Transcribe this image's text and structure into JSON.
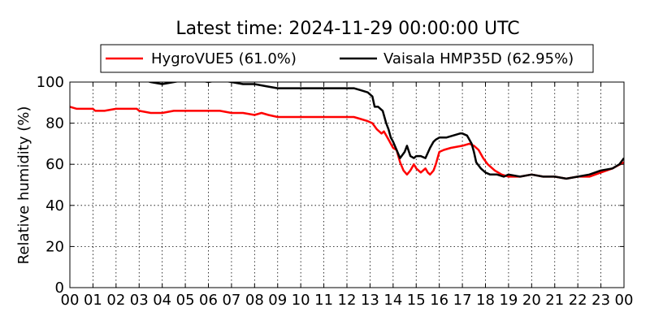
{
  "chart_data": {
    "type": "line",
    "title": "Latest time: 2024-11-29 00:00:00 UTC",
    "xlabel": "",
    "ylabel": "Relative humidity (%)",
    "xlim": [
      0,
      24
    ],
    "ylim": [
      0,
      100
    ],
    "x_ticks": [
      0,
      1,
      2,
      3,
      4,
      5,
      6,
      7,
      8,
      9,
      10,
      11,
      12,
      13,
      14,
      15,
      16,
      17,
      18,
      19,
      20,
      21,
      22,
      23,
      24
    ],
    "x_tick_labels": [
      "00",
      "01",
      "02",
      "03",
      "04",
      "05",
      "06",
      "07",
      "08",
      "09",
      "10",
      "11",
      "12",
      "13",
      "14",
      "15",
      "16",
      "17",
      "18",
      "19",
      "20",
      "21",
      "22",
      "23",
      "00"
    ],
    "y_ticks": [
      0,
      20,
      40,
      60,
      80,
      100
    ],
    "y_tick_labels": [
      "0",
      "20",
      "40",
      "60",
      "80",
      "100"
    ],
    "grid": true,
    "legend_position": "top-center",
    "series": [
      {
        "name": "HygroVUE5 (61.0%)",
        "color": "#ff0000",
        "x": [
          0,
          0.3,
          0.5,
          1.0,
          1.1,
          1.5,
          2.0,
          2.5,
          2.9,
          3.0,
          3.5,
          4.0,
          4.5,
          5.0,
          5.5,
          6.0,
          6.2,
          6.5,
          7.0,
          7.5,
          8.0,
          8.3,
          8.6,
          9.0,
          10.0,
          11.0,
          11.5,
          12.0,
          12.3,
          12.6,
          12.9,
          13.1,
          13.3,
          13.5,
          13.6,
          13.8,
          14.0,
          14.15,
          14.3,
          14.45,
          14.6,
          14.75,
          14.9,
          15.0,
          15.2,
          15.4,
          15.5,
          15.6,
          15.75,
          15.85,
          16.0,
          16.2,
          16.5,
          17.0,
          17.3,
          17.5,
          17.7,
          17.9,
          18.1,
          18.4,
          18.7,
          19.0,
          19.5,
          20.0,
          20.5,
          21.0,
          21.5,
          22.0,
          22.5,
          23.0,
          23.5,
          24.0
        ],
        "y": [
          88,
          87,
          87,
          87,
          86,
          86,
          87,
          87,
          87,
          86,
          85,
          85,
          86,
          86,
          86,
          86,
          86,
          86,
          85,
          85,
          84,
          85,
          84,
          83,
          83,
          83,
          83,
          83,
          83,
          82,
          81,
          80,
          77,
          75,
          76,
          72,
          68,
          67,
          61,
          57,
          55,
          57,
          60,
          58,
          56,
          58,
          56,
          55,
          57,
          60,
          66,
          67,
          68,
          69,
          70,
          69,
          67,
          63,
          60,
          57,
          55,
          54,
          54,
          55,
          54,
          54,
          53,
          54,
          54,
          56,
          58,
          61
        ]
      },
      {
        "name": "Vaisala HMP35D (62.95%)",
        "color": "#000000",
        "x": [
          0,
          0.5,
          1.0,
          2.0,
          2.5,
          3.0,
          3.2,
          3.5,
          4.0,
          4.5,
          5.0,
          5.5,
          6.0,
          6.5,
          7.0,
          7.5,
          8.0,
          8.5,
          9.0,
          9.5,
          10.0,
          10.5,
          11.0,
          11.5,
          12.0,
          12.3,
          12.6,
          12.9,
          13.1,
          13.2,
          13.35,
          13.55,
          13.7,
          13.8,
          13.9,
          14.0,
          14.15,
          14.3,
          14.5,
          14.6,
          14.75,
          14.9,
          15.0,
          15.2,
          15.4,
          15.6,
          15.75,
          15.85,
          16.0,
          16.3,
          16.6,
          16.9,
          17.0,
          17.2,
          17.4,
          17.5,
          17.6,
          17.8,
          18.0,
          18.2,
          18.5,
          18.8,
          19.0,
          19.5,
          20.0,
          20.5,
          21.0,
          21.5,
          22.0,
          22.5,
          23.0,
          23.5,
          23.8,
          24.0
        ],
        "y": [
          102,
          102,
          102,
          102,
          102,
          102,
          101,
          100,
          99,
          100,
          101,
          101,
          100,
          101,
          100,
          99,
          99,
          98,
          97,
          97,
          97,
          97,
          97,
          97,
          97,
          97,
          96,
          95,
          93,
          88,
          88,
          86,
          80,
          77,
          73,
          71,
          67,
          63,
          66,
          69,
          64,
          63,
          64,
          64,
          63,
          68,
          71,
          72,
          73,
          73,
          74,
          75,
          75,
          74,
          70,
          66,
          61,
          58,
          56,
          55,
          55,
          54,
          55,
          54,
          55,
          54,
          54,
          53,
          54,
          55,
          57,
          58,
          60,
          63
        ]
      }
    ]
  }
}
